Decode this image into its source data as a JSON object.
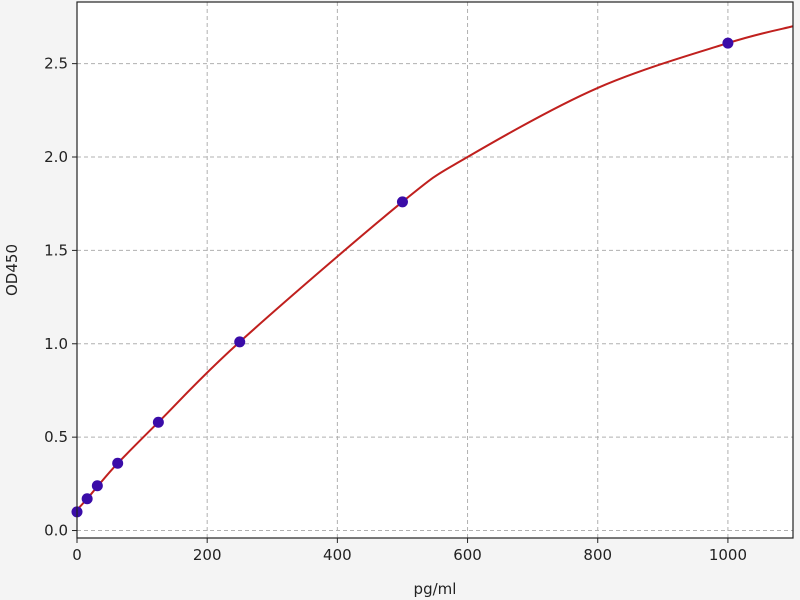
{
  "chart_data": {
    "type": "scatter",
    "title": "",
    "xlabel": "pg/ml",
    "ylabel": "OD450",
    "xlim": [
      0,
      1100
    ],
    "ylim": [
      -0.04,
      2.83
    ],
    "grid": true,
    "xticks": [
      "0",
      "200",
      "400",
      "600",
      "800",
      "1000"
    ],
    "yticks": [
      "0.0",
      "0.5",
      "1.0",
      "1.5",
      "2.0",
      "2.5"
    ],
    "points": {
      "x": [
        0,
        15.6,
        31.25,
        62.5,
        125,
        250,
        500,
        1000
      ],
      "y": [
        0.1,
        0.17,
        0.24,
        0.36,
        0.58,
        1.01,
        1.76,
        2.61
      ]
    },
    "fit_curve": {
      "x": [
        0,
        15.6,
        31.25,
        62.5,
        125,
        250,
        500,
        600,
        800,
        1000,
        1100
      ],
      "y": [
        0.11,
        0.17,
        0.235,
        0.36,
        0.58,
        1.01,
        1.76,
        2.0,
        2.37,
        2.61,
        2.7
      ]
    },
    "colors": {
      "points": "#3a0ca8",
      "curve": "#c0201e",
      "grid": "#b0b0b0"
    }
  }
}
